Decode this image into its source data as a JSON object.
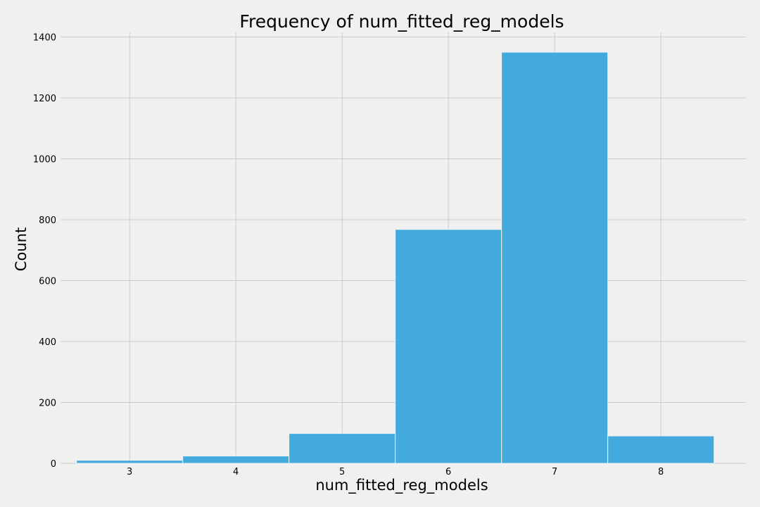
{
  "chart_data": {
    "type": "bar",
    "title": "Frequency of num_fitted_reg_models",
    "xlabel": "num_fitted_reg_models",
    "ylabel": "Count",
    "categories": [
      "3",
      "4",
      "5",
      "6",
      "7",
      "8"
    ],
    "x": [
      3,
      4,
      5,
      6,
      7,
      8
    ],
    "values": [
      10,
      24,
      98,
      768,
      1350,
      90
    ],
    "xlim": [
      2.35,
      8.8
    ],
    "ylim": [
      0,
      1415
    ],
    "yticks": [
      0,
      200,
      400,
      600,
      800,
      1000,
      1200,
      1400
    ],
    "xticks": [
      3,
      4,
      5,
      6,
      7,
      8
    ],
    "grid": true,
    "bar_color": "#30a2da",
    "background": "#f0f0f0",
    "grid_color": "#cbcbcb"
  }
}
